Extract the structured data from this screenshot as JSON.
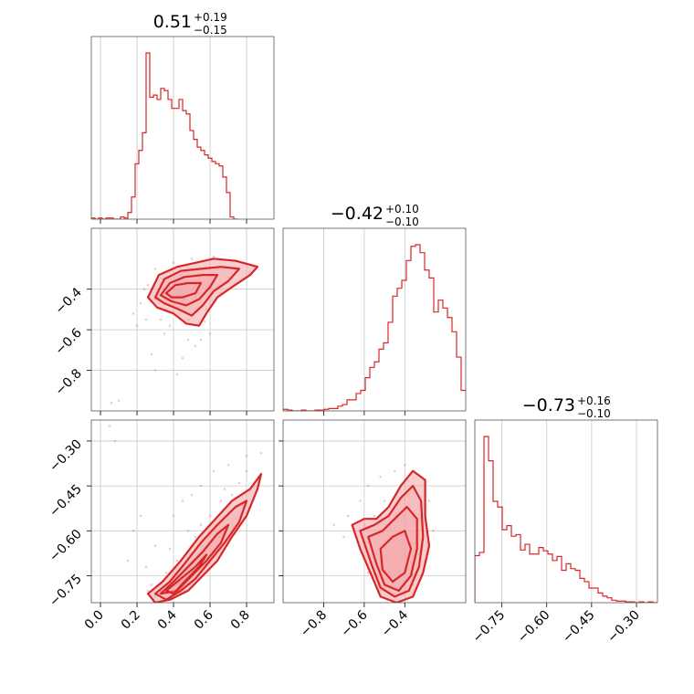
{
  "chart_data": {
    "type": "corner",
    "color": "#d62728",
    "fill_color": "#f4a3a6",
    "parameters": [
      {
        "median": "0.51",
        "upper": "+0.19",
        "lower": "−0.15",
        "range": [
          -0.05,
          0.95
        ],
        "ticks": [
          0.0,
          0.2,
          0.4,
          0.6,
          0.8
        ],
        "tick_labels": [
          "0.0",
          "0.2",
          "0.4",
          "0.6",
          "0.8"
        ]
      },
      {
        "median": "−0.42",
        "upper": "+0.10",
        "lower": "−0.10",
        "range": [
          -1.0,
          -0.1
        ],
        "ticks": [
          -0.8,
          -0.6,
          -0.4
        ],
        "tick_labels": [
          "−0.8",
          "−0.6",
          "−0.4"
        ]
      },
      {
        "median": "−0.73",
        "upper": "+0.16",
        "lower": "−0.10",
        "range": [
          -0.84,
          -0.23
        ],
        "ticks": [
          -0.75,
          -0.6,
          -0.45,
          -0.3
        ],
        "tick_labels": [
          "−0.75",
          "−0.60",
          "−0.45",
          "−0.30"
        ]
      }
    ],
    "histograms": [
      {
        "bin_start": -0.05,
        "bin_width": 0.02,
        "counts": [
          1,
          0,
          1,
          0,
          1,
          1,
          0,
          0,
          2,
          1,
          6,
          20,
          50,
          62,
          78,
          150,
          110,
          112,
          108,
          118,
          116,
          108,
          100,
          100,
          108,
          98,
          95,
          80,
          72,
          65,
          62,
          58,
          55,
          52,
          50,
          48,
          38,
          24,
          2,
          0
        ]
      },
      {
        "bin_start": -1.0,
        "bin_width": 0.0225,
        "counts": [
          2,
          1,
          0,
          0,
          1,
          0,
          0,
          1,
          1,
          2,
          3,
          3,
          6,
          8,
          14,
          14,
          22,
          26,
          42,
          55,
          62,
          78,
          86,
          112,
          145,
          155,
          165,
          190,
          208,
          210,
          200,
          178,
          168,
          125,
          140,
          130,
          118,
          100,
          68,
          26
        ]
      },
      {
        "bin_start": -0.84,
        "bin_width": 0.01525,
        "counts": [
          58,
          62,
          205,
          175,
          125,
          118,
          90,
          95,
          82,
          84,
          65,
          72,
          60,
          60,
          68,
          64,
          60,
          52,
          57,
          40,
          48,
          42,
          40,
          30,
          26,
          18,
          18,
          12,
          8,
          6,
          3,
          2,
          2,
          1,
          1,
          0,
          1,
          0,
          1,
          0
        ]
      }
    ],
    "pairs": [
      {
        "x_param": 0,
        "y_param": 1,
        "points": [
          [
            0.1,
            -0.95
          ],
          [
            0.06,
            -0.96
          ],
          [
            0.25,
            -0.55
          ],
          [
            0.2,
            -0.58
          ],
          [
            0.28,
            -0.72
          ],
          [
            0.3,
            -0.8
          ],
          [
            0.42,
            -0.82
          ],
          [
            0.45,
            -0.74
          ],
          [
            0.52,
            -0.68
          ],
          [
            0.55,
            -0.65
          ],
          [
            0.6,
            -0.62
          ],
          [
            0.35,
            -0.62
          ],
          [
            0.38,
            -0.58
          ],
          [
            0.22,
            -0.47
          ],
          [
            0.24,
            -0.4
          ],
          [
            0.3,
            -0.3
          ],
          [
            0.4,
            -0.27
          ],
          [
            0.5,
            -0.25
          ],
          [
            0.62,
            -0.24
          ],
          [
            0.74,
            -0.26
          ],
          [
            0.85,
            -0.3
          ],
          [
            0.78,
            -0.35
          ],
          [
            0.66,
            -0.42
          ],
          [
            0.58,
            -0.5
          ],
          [
            0.48,
            -0.55
          ],
          [
            0.36,
            -0.5
          ],
          [
            0.3,
            -0.45
          ],
          [
            0.26,
            -0.38
          ],
          [
            0.34,
            -0.35
          ],
          [
            0.44,
            -0.33
          ],
          [
            0.54,
            -0.36
          ],
          [
            0.64,
            -0.3
          ],
          [
            0.7,
            -0.34
          ],
          [
            0.46,
            -0.45
          ],
          [
            0.4,
            -0.4
          ],
          [
            0.52,
            -0.44
          ],
          [
            0.57,
            -0.56
          ],
          [
            0.33,
            -0.55
          ],
          [
            0.18,
            -0.52
          ],
          [
            0.48,
            -0.65
          ]
        ],
        "contours": [
          [
            [
              0.26,
              -0.44
            ],
            [
              0.32,
              -0.33
            ],
            [
              0.42,
              -0.29
            ],
            [
              0.52,
              -0.27
            ],
            [
              0.62,
              -0.25
            ],
            [
              0.74,
              -0.26
            ],
            [
              0.86,
              -0.29
            ],
            [
              0.82,
              -0.33
            ],
            [
              0.72,
              -0.39
            ],
            [
              0.64,
              -0.44
            ],
            [
              0.58,
              -0.52
            ],
            [
              0.54,
              -0.58
            ],
            [
              0.47,
              -0.57
            ],
            [
              0.4,
              -0.52
            ],
            [
              0.31,
              -0.49
            ]
          ],
          [
            [
              0.3,
              -0.44
            ],
            [
              0.35,
              -0.35
            ],
            [
              0.44,
              -0.31
            ],
            [
              0.55,
              -0.3
            ],
            [
              0.66,
              -0.29
            ],
            [
              0.76,
              -0.3
            ],
            [
              0.7,
              -0.36
            ],
            [
              0.62,
              -0.41
            ],
            [
              0.56,
              -0.48
            ],
            [
              0.5,
              -0.53
            ],
            [
              0.43,
              -0.5
            ],
            [
              0.35,
              -0.47
            ]
          ],
          [
            [
              0.33,
              -0.43
            ],
            [
              0.38,
              -0.37
            ],
            [
              0.46,
              -0.34
            ],
            [
              0.56,
              -0.33
            ],
            [
              0.64,
              -0.33
            ],
            [
              0.6,
              -0.39
            ],
            [
              0.54,
              -0.45
            ],
            [
              0.47,
              -0.48
            ],
            [
              0.39,
              -0.46
            ]
          ],
          [
            [
              0.36,
              -0.42
            ],
            [
              0.41,
              -0.38
            ],
            [
              0.48,
              -0.37
            ],
            [
              0.55,
              -0.37
            ],
            [
              0.52,
              -0.42
            ],
            [
              0.45,
              -0.44
            ],
            [
              0.39,
              -0.44
            ]
          ]
        ]
      },
      {
        "x_param": 0,
        "y_param": 2,
        "points": [
          [
            0.05,
            -0.25
          ],
          [
            0.08,
            -0.3
          ],
          [
            0.15,
            -0.7
          ],
          [
            0.18,
            -0.6
          ],
          [
            0.22,
            -0.55
          ],
          [
            0.25,
            -0.72
          ],
          [
            0.3,
            -0.65
          ],
          [
            0.28,
            -0.78
          ],
          [
            0.4,
            -0.55
          ],
          [
            0.45,
            -0.5
          ],
          [
            0.5,
            -0.48
          ],
          [
            0.55,
            -0.45
          ],
          [
            0.62,
            -0.4
          ],
          [
            0.7,
            -0.38
          ],
          [
            0.8,
            -0.35
          ],
          [
            0.88,
            -0.34
          ],
          [
            0.72,
            -0.48
          ],
          [
            0.6,
            -0.55
          ],
          [
            0.52,
            -0.62
          ],
          [
            0.42,
            -0.7
          ],
          [
            0.36,
            -0.74
          ],
          [
            0.33,
            -0.8
          ],
          [
            0.46,
            -0.8
          ],
          [
            0.58,
            -0.7
          ],
          [
            0.65,
            -0.62
          ],
          [
            0.74,
            -0.56
          ],
          [
            0.84,
            -0.45
          ],
          [
            0.76,
            -0.44
          ],
          [
            0.66,
            -0.5
          ],
          [
            0.48,
            -0.6
          ],
          [
            0.38,
            -0.66
          ],
          [
            0.3,
            -0.82
          ],
          [
            0.26,
            -0.8
          ],
          [
            0.55,
            -0.58
          ],
          [
            0.68,
            -0.46
          ],
          [
            0.8,
            -0.4
          ]
        ],
        "contours": [
          [
            [
              0.26,
              -0.81
            ],
            [
              0.34,
              -0.77
            ],
            [
              0.44,
              -0.7
            ],
            [
              0.54,
              -0.62
            ],
            [
              0.63,
              -0.56
            ],
            [
              0.72,
              -0.5
            ],
            [
              0.82,
              -0.46
            ],
            [
              0.88,
              -0.41
            ],
            [
              0.86,
              -0.46
            ],
            [
              0.8,
              -0.55
            ],
            [
              0.72,
              -0.62
            ],
            [
              0.64,
              -0.7
            ],
            [
              0.56,
              -0.75
            ],
            [
              0.48,
              -0.8
            ],
            [
              0.38,
              -0.83
            ],
            [
              0.3,
              -0.84
            ]
          ],
          [
            [
              0.3,
              -0.81
            ],
            [
              0.38,
              -0.77
            ],
            [
              0.46,
              -0.71
            ],
            [
              0.55,
              -0.64
            ],
            [
              0.64,
              -0.58
            ],
            [
              0.74,
              -0.52
            ],
            [
              0.8,
              -0.5
            ],
            [
              0.76,
              -0.57
            ],
            [
              0.68,
              -0.64
            ],
            [
              0.6,
              -0.7
            ],
            [
              0.52,
              -0.76
            ],
            [
              0.44,
              -0.8
            ],
            [
              0.36,
              -0.83
            ]
          ],
          [
            [
              0.33,
              -0.81
            ],
            [
              0.4,
              -0.77
            ],
            [
              0.48,
              -0.72
            ],
            [
              0.56,
              -0.67
            ],
            [
              0.64,
              -0.61
            ],
            [
              0.7,
              -0.58
            ],
            [
              0.66,
              -0.64
            ],
            [
              0.58,
              -0.7
            ],
            [
              0.5,
              -0.75
            ],
            [
              0.42,
              -0.8
            ]
          ],
          [
            [
              0.36,
              -0.8
            ],
            [
              0.44,
              -0.76
            ],
            [
              0.52,
              -0.72
            ],
            [
              0.58,
              -0.68
            ],
            [
              0.54,
              -0.72
            ],
            [
              0.46,
              -0.77
            ],
            [
              0.4,
              -0.81
            ]
          ]
        ]
      },
      {
        "x_param": 1,
        "y_param": 2,
        "points": [
          [
            -0.62,
            -0.5
          ],
          [
            -0.68,
            -0.55
          ],
          [
            -0.75,
            -0.58
          ],
          [
            -0.7,
            -0.62
          ],
          [
            -0.58,
            -0.45
          ],
          [
            -0.52,
            -0.42
          ],
          [
            -0.45,
            -0.4
          ],
          [
            -0.4,
            -0.38
          ],
          [
            -0.32,
            -0.42
          ],
          [
            -0.28,
            -0.5
          ],
          [
            -0.26,
            -0.6
          ],
          [
            -0.3,
            -0.7
          ],
          [
            -0.36,
            -0.78
          ],
          [
            -0.44,
            -0.82
          ],
          [
            -0.52,
            -0.8
          ],
          [
            -0.58,
            -0.74
          ],
          [
            -0.62,
            -0.66
          ],
          [
            -0.65,
            -0.6
          ],
          [
            -0.55,
            -0.55
          ],
          [
            -0.48,
            -0.62
          ],
          [
            -0.4,
            -0.55
          ],
          [
            -0.35,
            -0.64
          ],
          [
            -0.46,
            -0.72
          ],
          [
            -0.38,
            -0.48
          ],
          [
            -0.5,
            -0.5
          ],
          [
            -0.6,
            -0.58
          ],
          [
            -0.42,
            -0.66
          ],
          [
            -0.32,
            -0.56
          ]
        ],
        "contours": [
          [
            [
              -0.66,
              -0.58
            ],
            [
              -0.6,
              -0.56
            ],
            [
              -0.54,
              -0.56
            ],
            [
              -0.48,
              -0.52
            ],
            [
              -0.42,
              -0.45
            ],
            [
              -0.36,
              -0.4
            ],
            [
              -0.3,
              -0.43
            ],
            [
              -0.3,
              -0.55
            ],
            [
              -0.28,
              -0.65
            ],
            [
              -0.31,
              -0.74
            ],
            [
              -0.36,
              -0.82
            ],
            [
              -0.44,
              -0.84
            ],
            [
              -0.52,
              -0.82
            ],
            [
              -0.57,
              -0.74
            ],
            [
              -0.62,
              -0.66
            ]
          ],
          [
            [
              -0.62,
              -0.6
            ],
            [
              -0.55,
              -0.58
            ],
            [
              -0.48,
              -0.55
            ],
            [
              -0.42,
              -0.49
            ],
            [
              -0.36,
              -0.45
            ],
            [
              -0.32,
              -0.5
            ],
            [
              -0.31,
              -0.62
            ],
            [
              -0.33,
              -0.72
            ],
            [
              -0.38,
              -0.8
            ],
            [
              -0.45,
              -0.82
            ],
            [
              -0.52,
              -0.79
            ],
            [
              -0.56,
              -0.72
            ],
            [
              -0.59,
              -0.66
            ]
          ],
          [
            [
              -0.58,
              -0.62
            ],
            [
              -0.51,
              -0.6
            ],
            [
              -0.45,
              -0.56
            ],
            [
              -0.39,
              -0.52
            ],
            [
              -0.34,
              -0.56
            ],
            [
              -0.34,
              -0.66
            ],
            [
              -0.37,
              -0.75
            ],
            [
              -0.43,
              -0.8
            ],
            [
              -0.5,
              -0.78
            ],
            [
              -0.54,
              -0.71
            ]
          ],
          [
            [
              -0.52,
              -0.66
            ],
            [
              -0.46,
              -0.62
            ],
            [
              -0.4,
              -0.6
            ],
            [
              -0.37,
              -0.66
            ],
            [
              -0.4,
              -0.74
            ],
            [
              -0.46,
              -0.77
            ],
            [
              -0.51,
              -0.73
            ]
          ]
        ]
      }
    ]
  }
}
